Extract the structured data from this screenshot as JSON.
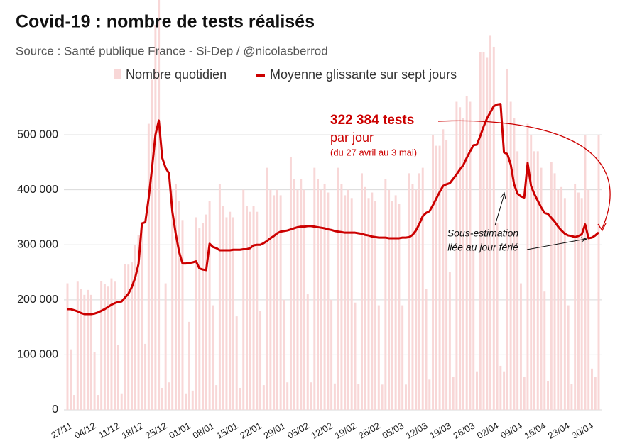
{
  "chart_data": {
    "type": "bar",
    "title": "Covid-19 : nombre de tests réalisés",
    "subtitle": "Source : Santé publique France - Si-Dep / @nicolasberrod",
    "annotations": [
      "322 384 tests",
      "par jour",
      "(du 27 avril au 3 mai)",
      "Sous-estimation",
      "liée au jour férié"
    ],
    "categories": [
      "27/11",
      null,
      null,
      null,
      null,
      null,
      null,
      "04/12",
      null,
      null,
      null,
      null,
      null,
      null,
      "11/12",
      null,
      null,
      null,
      null,
      null,
      null,
      "18/12",
      null,
      null,
      null,
      null,
      null,
      null,
      "25/12",
      null,
      null,
      null,
      null,
      null,
      null,
      "01/01",
      null,
      null,
      null,
      null,
      null,
      null,
      "08/01",
      null,
      null,
      null,
      null,
      null,
      null,
      "15/01",
      null,
      null,
      null,
      null,
      null,
      null,
      "22/01",
      null,
      null,
      null,
      null,
      null,
      null,
      "29/01",
      null,
      null,
      null,
      null,
      null,
      null,
      "05/02",
      null,
      null,
      null,
      null,
      null,
      null,
      "12/02",
      null,
      null,
      null,
      null,
      null,
      null,
      "19/02",
      null,
      null,
      null,
      null,
      null,
      null,
      "26/02",
      null,
      null,
      null,
      null,
      null,
      null,
      "05/03",
      null,
      null,
      null,
      null,
      null,
      null,
      "12/03",
      null,
      null,
      null,
      null,
      null,
      null,
      "19/03",
      null,
      null,
      null,
      null,
      null,
      null,
      "26/03",
      null,
      null,
      null,
      null,
      null,
      null,
      "02/04",
      null,
      null,
      null,
      null,
      null,
      null,
      "09/04",
      null,
      null,
      null,
      null,
      null,
      null,
      "16/04",
      null,
      null,
      null,
      null,
      null,
      null,
      "23/04",
      null,
      null,
      null,
      null,
      null,
      null,
      "30/04",
      null,
      null,
      null
    ],
    "series": [
      {
        "name": "Nombre quotidien",
        "type": "bar",
        "color": "#f8d7d7",
        "values": [
          230000,
          110000,
          27000,
          233000,
          220000,
          209000,
          218000,
          209000,
          105000,
          27000,
          234000,
          229000,
          224000,
          239000,
          233000,
          118000,
          30000,
          265000,
          264000,
          268000,
          300000,
          318000,
          340000,
          120000,
          520000,
          600000,
          700000,
          760000,
          40000,
          230000,
          50000,
          400000,
          410000,
          380000,
          345000,
          30000,
          160000,
          35000,
          350000,
          330000,
          340000,
          355000,
          380000,
          190000,
          45000,
          410000,
          370000,
          350000,
          360000,
          350000,
          170000,
          40000,
          400000,
          370000,
          360000,
          370000,
          360000,
          180000,
          45000,
          440000,
          400000,
          390000,
          400000,
          390000,
          200000,
          50000,
          460000,
          420000,
          400000,
          420000,
          400000,
          210000,
          50000,
          440000,
          420000,
          400000,
          410000,
          395000,
          200000,
          48000,
          440000,
          410000,
          390000,
          400000,
          385000,
          195000,
          47000,
          430000,
          405000,
          385000,
          395000,
          380000,
          190000,
          46000,
          420000,
          400000,
          380000,
          390000,
          375000,
          190000,
          46000,
          430000,
          410000,
          400000,
          430000,
          440000,
          220000,
          55000,
          500000,
          480000,
          480000,
          510000,
          490000,
          250000,
          60000,
          560000,
          550000,
          530000,
          570000,
          560000,
          290000,
          70000,
          650000,
          650000,
          640000,
          680000,
          660000,
          340000,
          80000,
          70000,
          620000,
          560000,
          530000,
          470000,
          230000,
          60000,
          520000,
          500000,
          470000,
          470000,
          440000,
          215000,
          52000,
          450000,
          430000,
          400000,
          405000,
          385000,
          190000,
          47000,
          410000,
          395000,
          385000,
          500000,
          400000,
          75000,
          60000,
          500000
        ]
      },
      {
        "name": "Moyenne glissante sur sept jours",
        "type": "line",
        "color": "#cc0000",
        "values": [
          183000,
          183000,
          181000,
          179000,
          176000,
          174000,
          174000,
          174000,
          175000,
          177000,
          180000,
          183000,
          187000,
          191000,
          194000,
          196000,
          197000,
          204000,
          211000,
          223000,
          240000,
          265000,
          339000,
          341000,
          385000,
          440000,
          500000,
          526000,
          458000,
          440000,
          430000,
          360000,
          320000,
          287000,
          266000,
          266000,
          267000,
          268000,
          270000,
          257000,
          255000,
          254000,
          302000,
          296000,
          294000,
          290000,
          290000,
          290000,
          290000,
          291000,
          291000,
          291000,
          292000,
          292000,
          294000,
          299000,
          300000,
          300000,
          303000,
          307000,
          312000,
          316000,
          321000,
          324000,
          325000,
          326000,
          328000,
          330000,
          332000,
          333000,
          333000,
          334000,
          334000,
          333000,
          332000,
          331000,
          330000,
          328000,
          327000,
          325000,
          324000,
          323000,
          322000,
          322000,
          322000,
          322000,
          321000,
          320000,
          318000,
          317000,
          315000,
          314000,
          313000,
          313000,
          313000,
          312000,
          312000,
          312000,
          312000,
          313000,
          313000,
          314000,
          318000,
          326000,
          338000,
          352000,
          358000,
          361000,
          372000,
          384000,
          396000,
          407000,
          410000,
          412000,
          420000,
          428000,
          437000,
          445000,
          458000,
          470000,
          481000,
          482000,
          498000,
          515000,
          530000,
          541000,
          552000,
          555000,
          556000,
          468000,
          465000,
          446000,
          410000,
          393000,
          388000,
          386000,
          449000,
          407000,
          392000,
          380000,
          368000,
          358000,
          356000,
          349000,
          342000,
          333000,
          326000,
          320000,
          317000,
          316000,
          314000,
          316000,
          319000,
          337000,
          312000,
          313000,
          317000,
          322384
        ]
      }
    ],
    "ylim": [
      0,
      745000
    ],
    "yticks": [
      0,
      {
        "value": 100000,
        "label": "100 000"
      },
      {
        "value": 200000,
        "label": "200 000"
      },
      {
        "value": 300000,
        "label": "300 000"
      },
      {
        "value": 400000,
        "label": "400 000"
      },
      {
        "value": 500000,
        "label": "500 000"
      }
    ],
    "grid": true
  }
}
